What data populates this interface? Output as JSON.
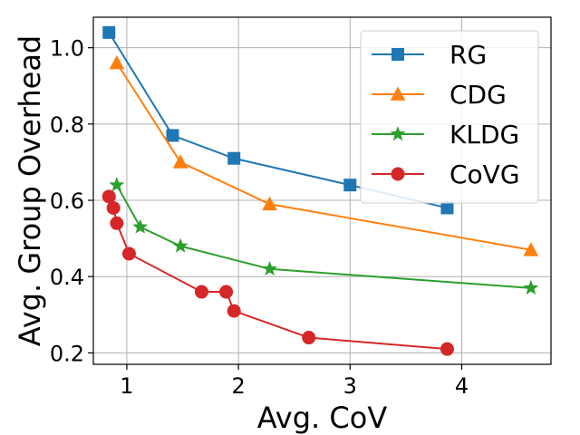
{
  "chart_data": {
    "type": "line",
    "xlabel": "Avg. CoV",
    "ylabel": "Avg. Group Overhead",
    "xlim": [
      0.7,
      4.8
    ],
    "ylim": [
      0.17,
      1.08
    ],
    "xticks": [
      1,
      2,
      3,
      4
    ],
    "yticks": [
      0.2,
      0.4,
      0.6,
      0.8,
      1.0
    ],
    "xtick_labels": [
      "1",
      "2",
      "3",
      "4"
    ],
    "ytick_labels": [
      "0.2",
      "0.4",
      "0.6",
      "0.8",
      "1.0"
    ],
    "grid": true,
    "legend_position": "top-right",
    "series": [
      {
        "name": "RG",
        "color": "#1f77b4",
        "marker": "square",
        "x": [
          0.84,
          1.41,
          1.96,
          3.0,
          3.87
        ],
        "y": [
          1.04,
          0.77,
          0.71,
          0.64,
          0.58
        ]
      },
      {
        "name": "CDG",
        "color": "#ff7f0e",
        "marker": "triangle",
        "x": [
          0.91,
          1.48,
          2.28,
          4.62
        ],
        "y": [
          0.96,
          0.7,
          0.59,
          0.47
        ]
      },
      {
        "name": "KLDG",
        "color": "#2ca02c",
        "marker": "star",
        "x": [
          0.91,
          1.12,
          1.48,
          2.28,
          4.62
        ],
        "y": [
          0.64,
          0.53,
          0.48,
          0.42,
          0.37
        ]
      },
      {
        "name": "CoVG",
        "color": "#d62728",
        "marker": "circle",
        "x": [
          0.84,
          0.88,
          0.91,
          1.02,
          1.67,
          1.89,
          1.96,
          2.63,
          3.87
        ],
        "y": [
          0.61,
          0.58,
          0.54,
          0.46,
          0.36,
          0.36,
          0.31,
          0.24,
          0.21
        ]
      }
    ]
  }
}
